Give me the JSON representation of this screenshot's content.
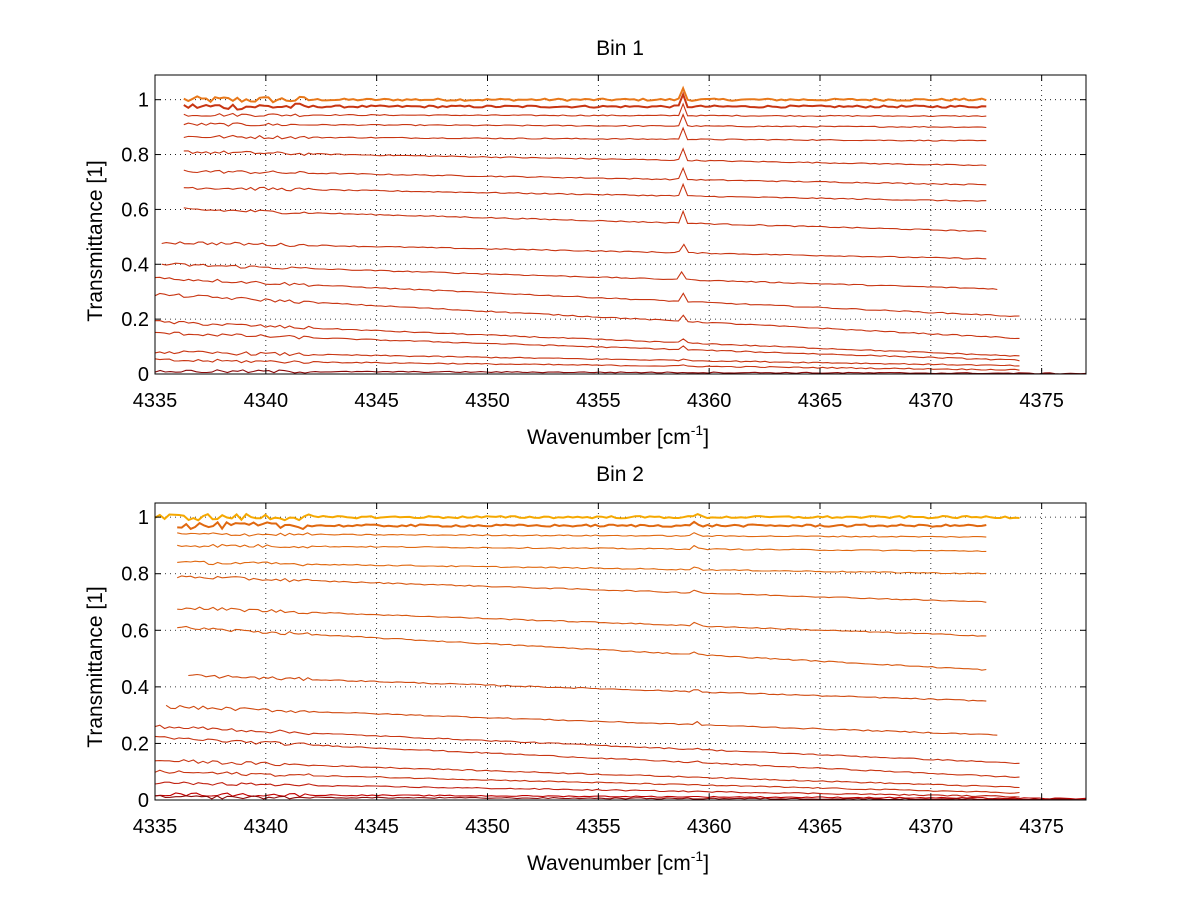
{
  "chart_data": [
    {
      "type": "line",
      "title": "Bin 1",
      "xlabel": "Wavenumber [cm",
      "xlabel_sup": "-1",
      "xlabel_suffix": "]",
      "ylabel": "Transmittance [1]",
      "xlim": [
        4335,
        4377
      ],
      "ylim": [
        0,
        1.09
      ],
      "xticks": [
        4335,
        4340,
        4345,
        4350,
        4355,
        4360,
        4365,
        4370,
        4375
      ],
      "yticks": [
        0,
        0.2,
        0.4,
        0.6,
        0.8,
        1
      ],
      "grid": "dotted",
      "peak_x": 4358.8,
      "series": [
        {
          "start": 4336.3,
          "end": 4372.5,
          "start_value": 1.0,
          "end_value": 1.0,
          "color": "#e8781a"
        },
        {
          "start": 4336.3,
          "end": 4372.5,
          "start_value": 0.975,
          "end_value": 0.975,
          "color": "#c83512"
        },
        {
          "start": 4336.3,
          "end": 4372.5,
          "start_value": 0.945,
          "end_value": 0.94,
          "color": "#c83512"
        },
        {
          "start": 4336.3,
          "end": 4372.5,
          "start_value": 0.91,
          "end_value": 0.9,
          "color": "#c83512"
        },
        {
          "start": 4336.3,
          "end": 4372.5,
          "start_value": 0.865,
          "end_value": 0.85,
          "color": "#c83512"
        },
        {
          "start": 4336.3,
          "end": 4372.5,
          "start_value": 0.81,
          "end_value": 0.76,
          "color": "#c83512"
        },
        {
          "start": 4336.3,
          "end": 4372.5,
          "start_value": 0.74,
          "end_value": 0.69,
          "color": "#c83512"
        },
        {
          "start": 4336.3,
          "end": 4372.5,
          "start_value": 0.68,
          "end_value": 0.63,
          "color": "#c83512"
        },
        {
          "start": 4336.3,
          "end": 4372.5,
          "start_value": 0.6,
          "end_value": 0.52,
          "color": "#c83512"
        },
        {
          "start": 4335.3,
          "end": 4372.5,
          "start_value": 0.48,
          "end_value": 0.42,
          "color": "#c83512"
        },
        {
          "start": 4335.3,
          "end": 4373.0,
          "start_value": 0.4,
          "end_value": 0.31,
          "color": "#c83512"
        },
        {
          "start": 4335.0,
          "end": 4374.0,
          "start_value": 0.35,
          "end_value": 0.21,
          "color": "#c83512"
        },
        {
          "start": 4335.0,
          "end": 4374.0,
          "start_value": 0.29,
          "end_value": 0.13,
          "color": "#c83512"
        },
        {
          "start": 4335.0,
          "end": 4374.0,
          "start_value": 0.19,
          "end_value": 0.065,
          "color": "#c83512"
        },
        {
          "start": 4335.0,
          "end": 4374.0,
          "start_value": 0.15,
          "end_value": 0.05,
          "color": "#c83512"
        },
        {
          "start": 4335.0,
          "end": 4374.0,
          "start_value": 0.08,
          "end_value": 0.03,
          "color": "#c83512"
        },
        {
          "start": 4335.0,
          "end": 4374.0,
          "start_value": 0.05,
          "end_value": 0.015,
          "color": "#c83512"
        },
        {
          "start": 4335.0,
          "end": 4377.0,
          "start_value": 0.01,
          "end_value": 0.002,
          "color": "#8a0a0a"
        }
      ]
    },
    {
      "type": "line",
      "title": "Bin 2",
      "xlabel": "Wavenumber [cm",
      "xlabel_sup": "-1",
      "xlabel_suffix": "]",
      "ylabel": "Transmittance [1]",
      "xlim": [
        4335,
        4377
      ],
      "ylim": [
        0,
        1.05
      ],
      "xticks": [
        4335,
        4340,
        4345,
        4350,
        4355,
        4360,
        4365,
        4370,
        4375
      ],
      "yticks": [
        0,
        0.2,
        0.4,
        0.6,
        0.8,
        1
      ],
      "grid": "dotted",
      "peak_x": 4359.4,
      "series": [
        {
          "start": 4335.0,
          "end": 4374.0,
          "start_value": 1.0,
          "end_value": 1.0,
          "color": "#f5a800"
        },
        {
          "start": 4336.0,
          "end": 4372.5,
          "start_value": 0.97,
          "end_value": 0.97,
          "color": "#e06810"
        },
        {
          "start": 4336.0,
          "end": 4372.5,
          "start_value": 0.94,
          "end_value": 0.93,
          "color": "#e06810"
        },
        {
          "start": 4336.0,
          "end": 4372.5,
          "start_value": 0.9,
          "end_value": 0.88,
          "color": "#e06810"
        },
        {
          "start": 4336.0,
          "end": 4372.5,
          "start_value": 0.84,
          "end_value": 0.8,
          "color": "#e06810"
        },
        {
          "start": 4336.0,
          "end": 4372.5,
          "start_value": 0.79,
          "end_value": 0.7,
          "color": "#d85810"
        },
        {
          "start": 4336.0,
          "end": 4372.5,
          "start_value": 0.68,
          "end_value": 0.58,
          "color": "#d85810"
        },
        {
          "start": 4336.0,
          "end": 4372.5,
          "start_value": 0.61,
          "end_value": 0.46,
          "color": "#d85810"
        },
        {
          "start": 4336.5,
          "end": 4372.5,
          "start_value": 0.44,
          "end_value": 0.35,
          "color": "#d04a10"
        },
        {
          "start": 4335.5,
          "end": 4373.0,
          "start_value": 0.33,
          "end_value": 0.23,
          "color": "#d04a10"
        },
        {
          "start": 4335.0,
          "end": 4374.0,
          "start_value": 0.26,
          "end_value": 0.13,
          "color": "#c83512"
        },
        {
          "start": 4335.0,
          "end": 4374.0,
          "start_value": 0.22,
          "end_value": 0.08,
          "color": "#c83512"
        },
        {
          "start": 4335.0,
          "end": 4374.0,
          "start_value": 0.14,
          "end_value": 0.045,
          "color": "#c83512"
        },
        {
          "start": 4335.0,
          "end": 4374.0,
          "start_value": 0.1,
          "end_value": 0.025,
          "color": "#c83512"
        },
        {
          "start": 4335.0,
          "end": 4374.0,
          "start_value": 0.06,
          "end_value": 0.012,
          "color": "#c02010"
        },
        {
          "start": 4335.0,
          "end": 4377.0,
          "start_value": 0.02,
          "end_value": 0.005,
          "color": "#c00000"
        },
        {
          "start": 4335.0,
          "end": 4377.0,
          "start_value": 0.01,
          "end_value": 0.002,
          "color": "#8a0a0a"
        }
      ]
    }
  ]
}
